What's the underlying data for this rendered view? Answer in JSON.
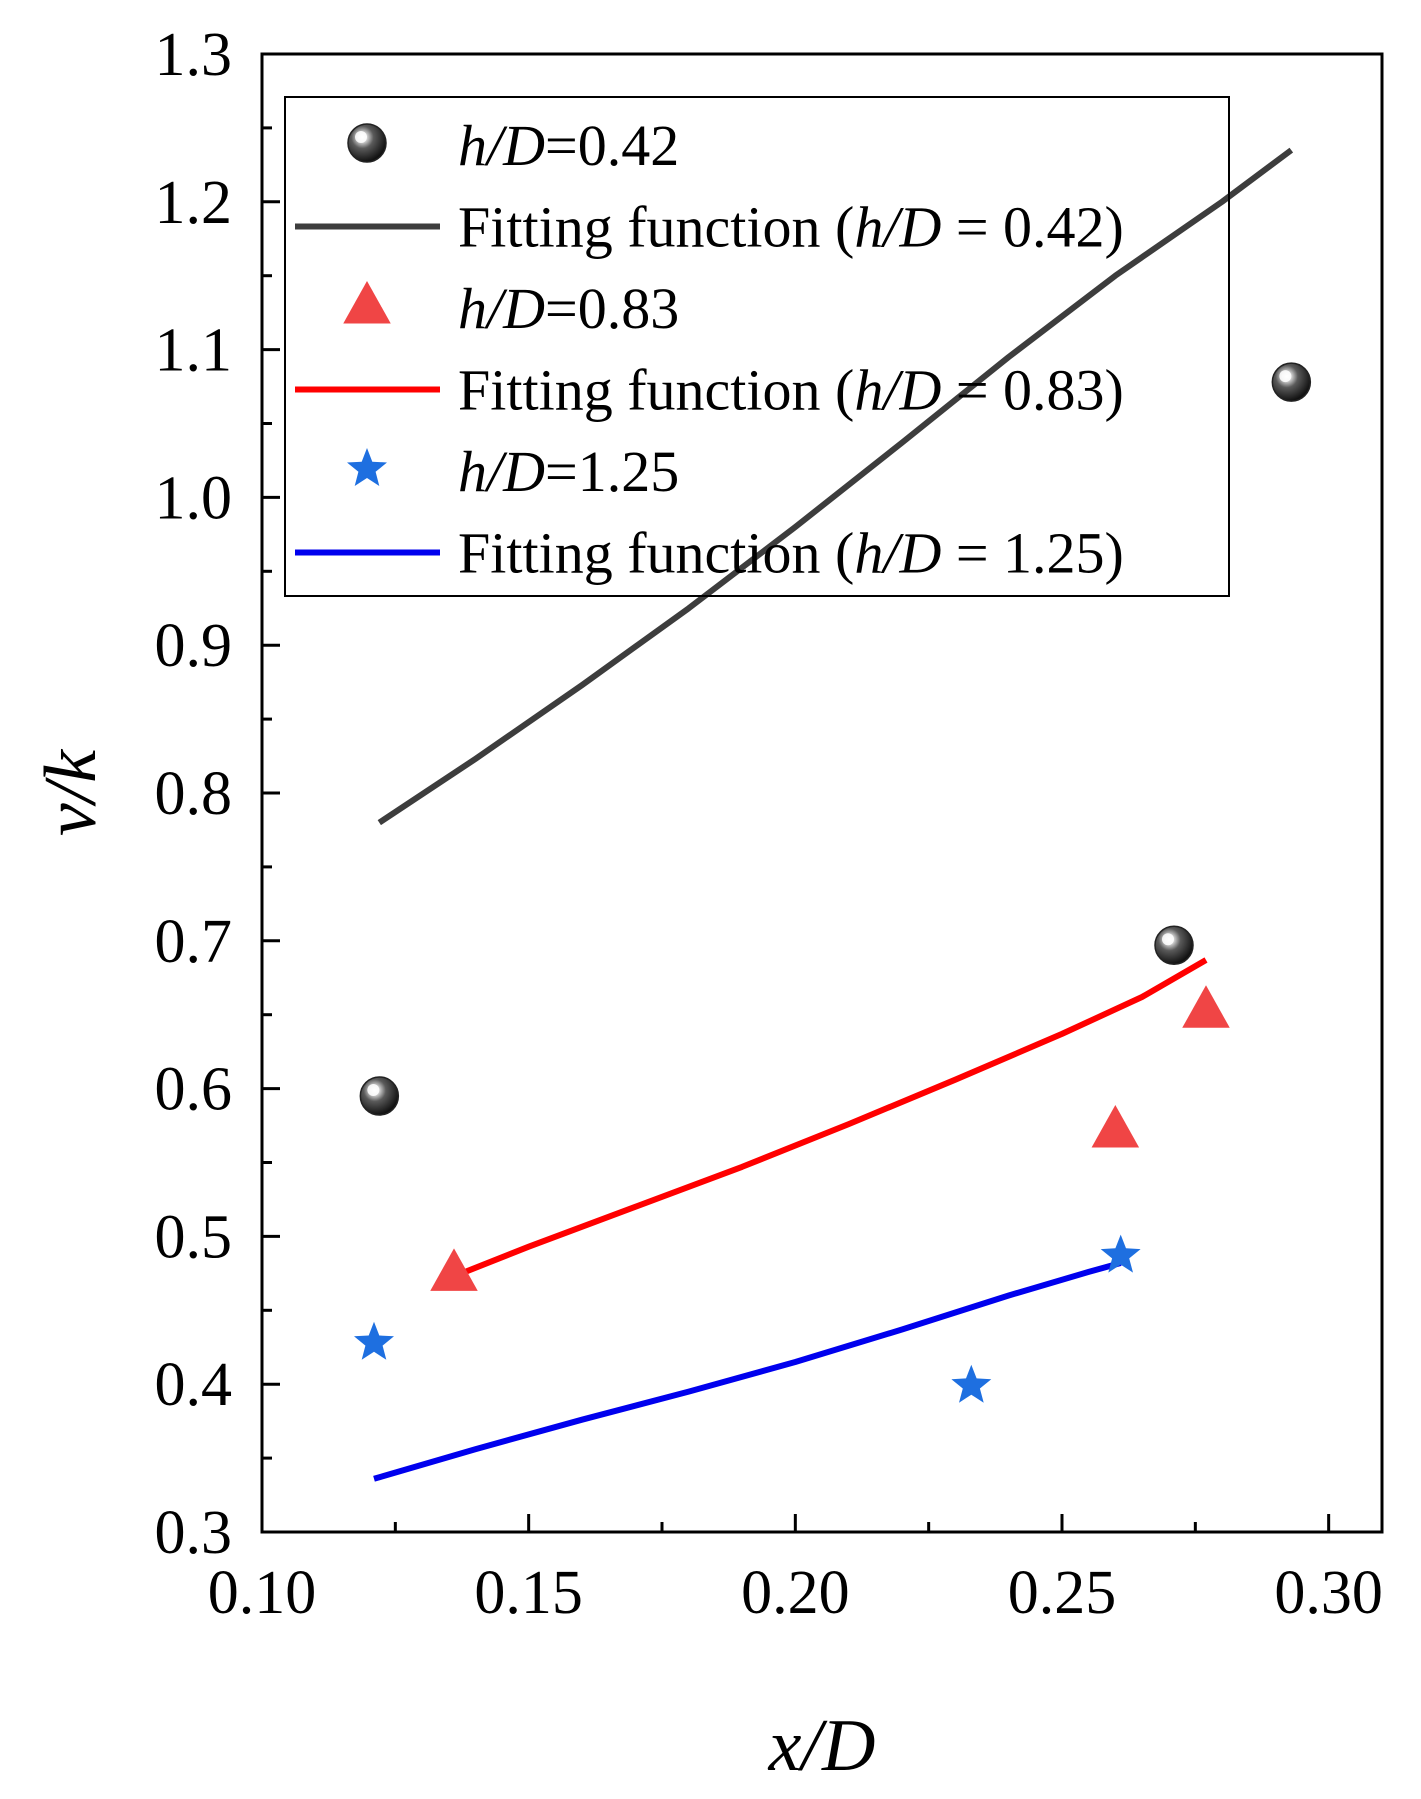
{
  "chart_data": {
    "type": "scatter",
    "xlabel_parts": [
      "x",
      "/D"
    ],
    "ylabel_parts": [
      "v",
      "/k"
    ],
    "xlim": [
      0.1,
      0.31
    ],
    "ylim": [
      0.3,
      1.3
    ],
    "xticks": [
      "0.10",
      "0.15",
      "0.20",
      "0.25",
      "0.30"
    ],
    "xtick_values": [
      0.1,
      0.15,
      0.2,
      0.25,
      0.3
    ],
    "yticks": [
      "0.3",
      "0.4",
      "0.5",
      "0.6",
      "0.7",
      "0.8",
      "0.9",
      "1.0",
      "1.1",
      "1.2",
      "1.3"
    ],
    "ytick_values": [
      0.3,
      0.4,
      0.5,
      0.6,
      0.7,
      0.8,
      0.9,
      1.0,
      1.1,
      1.2,
      1.3
    ],
    "colors": {
      "gray": "#3d3d3d",
      "red": "#ff0000",
      "red_marker": "#f04545",
      "blue": "#0000ee",
      "blue_marker": "#1e6fe0"
    },
    "series": [
      {
        "name": "h/D=0.42",
        "kind": "points",
        "marker": "sphere",
        "x": [
          0.122,
          0.271,
          0.293
        ],
        "y": [
          0.595,
          0.697,
          1.078
        ]
      },
      {
        "name": "Fitting function (h/D = 0.42)",
        "kind": "line",
        "color": "gray",
        "x": [
          0.122,
          0.14,
          0.16,
          0.18,
          0.2,
          0.22,
          0.24,
          0.26,
          0.28,
          0.293
        ],
        "y": [
          0.78,
          0.823,
          0.873,
          0.925,
          0.98,
          1.037,
          1.095,
          1.15,
          1.2,
          1.235
        ]
      },
      {
        "name": "h/D=0.83",
        "kind": "points",
        "marker": "triangle",
        "x": [
          0.136,
          0.26,
          0.277
        ],
        "y": [
          0.475,
          0.572,
          0.653
        ]
      },
      {
        "name": "Fitting function (h/D = 0.83)",
        "kind": "line",
        "color": "red",
        "x": [
          0.136,
          0.15,
          0.17,
          0.19,
          0.21,
          0.23,
          0.25,
          0.265,
          0.277
        ],
        "y": [
          0.473,
          0.493,
          0.52,
          0.547,
          0.576,
          0.606,
          0.637,
          0.662,
          0.687
        ]
      },
      {
        "name": "h/D=1.25",
        "kind": "points",
        "marker": "star",
        "x": [
          0.121,
          0.233,
          0.261
        ],
        "y": [
          0.428,
          0.399,
          0.487
        ]
      },
      {
        "name": "Fitting function (h/D = 1.25)",
        "kind": "line",
        "color": "blue",
        "x": [
          0.121,
          0.14,
          0.16,
          0.18,
          0.2,
          0.22,
          0.24,
          0.255,
          0.261
        ],
        "y": [
          0.336,
          0.356,
          0.376,
          0.395,
          0.415,
          0.437,
          0.46,
          0.476,
          0.482
        ]
      }
    ],
    "legend": {
      "position": "top-left",
      "entries": [
        {
          "prefix": "",
          "italic": "h/D",
          "suffix": "=0.42",
          "marker": "sphere"
        },
        {
          "prefix": "Fitting function (",
          "italic": "h/D",
          "suffix": " = 0.42)",
          "line": "gray"
        },
        {
          "prefix": "",
          "italic": "h/D",
          "suffix": "=0.83",
          "marker": "triangle"
        },
        {
          "prefix": "Fitting function (",
          "italic": "h/D",
          "suffix": " = 0.83)",
          "line": "red"
        },
        {
          "prefix": "",
          "italic": "h/D",
          "suffix": "=1.25",
          "marker": "star"
        },
        {
          "prefix": "Fitting function (",
          "italic": "h/D",
          "suffix": " = 1.25)",
          "line": "blue"
        }
      ]
    }
  }
}
